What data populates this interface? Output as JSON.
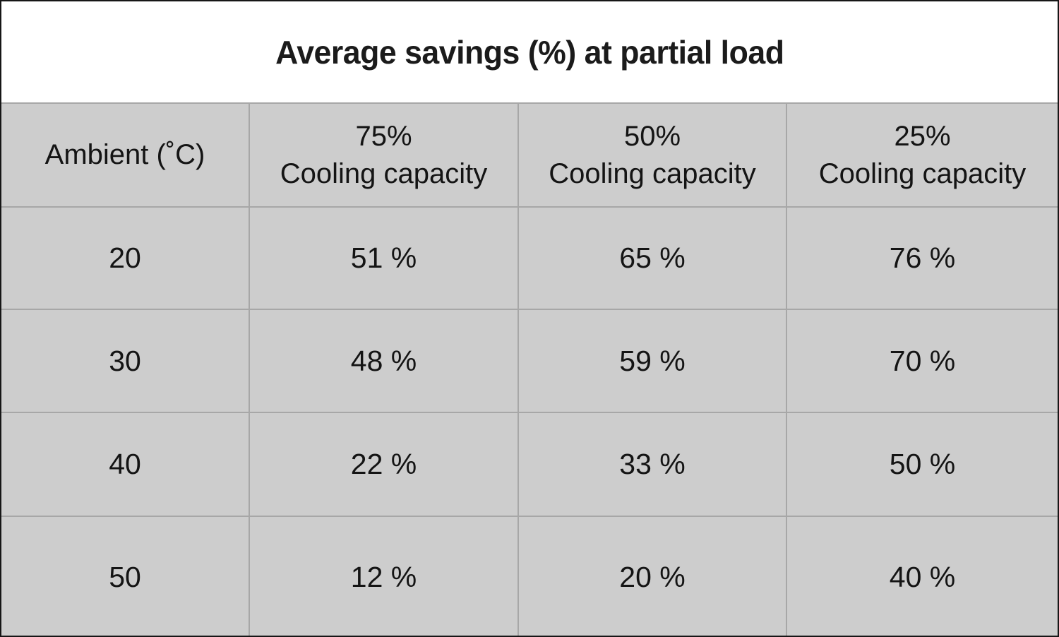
{
  "title": "Average savings (%) at partial load",
  "colors": {
    "cell_background": "#cdcdcd",
    "grid_border": "#a7a7a7",
    "outer_border": "#161616",
    "title_background": "#ffffff",
    "text": "#141414"
  },
  "table": {
    "columns": [
      {
        "line1": "Ambient (˚C)",
        "line2": ""
      },
      {
        "line1": "75%",
        "line2": "Cooling capacity"
      },
      {
        "line1": "50%",
        "line2": "Cooling capacity"
      },
      {
        "line1": "25%",
        "line2": "Cooling capacity"
      }
    ],
    "rows": [
      {
        "ambient": "20",
        "values": [
          "51 %",
          "65 %",
          "76 %"
        ]
      },
      {
        "ambient": "30",
        "values": [
          "48 %",
          "59 %",
          "70 %"
        ]
      },
      {
        "ambient": "40",
        "values": [
          "22 %",
          "33 %",
          "50 %"
        ]
      },
      {
        "ambient": "50",
        "values": [
          "12 %",
          "20 %",
          "40 %"
        ]
      }
    ]
  },
  "chart_data": {
    "type": "table",
    "title": "Average savings (%) at partial load",
    "columns": [
      "Ambient (˚C)",
      "75% Cooling capacity",
      "50% Cooling capacity",
      "25% Cooling capacity"
    ],
    "rows": [
      [
        20,
        51,
        65,
        76
      ],
      [
        30,
        48,
        59,
        70
      ],
      [
        40,
        22,
        33,
        50
      ],
      [
        50,
        12,
        20,
        40
      ]
    ],
    "units": "percent savings",
    "notes": "Rows are ambient temperature in degrees C; values are average savings at each partial cooling capacity"
  }
}
